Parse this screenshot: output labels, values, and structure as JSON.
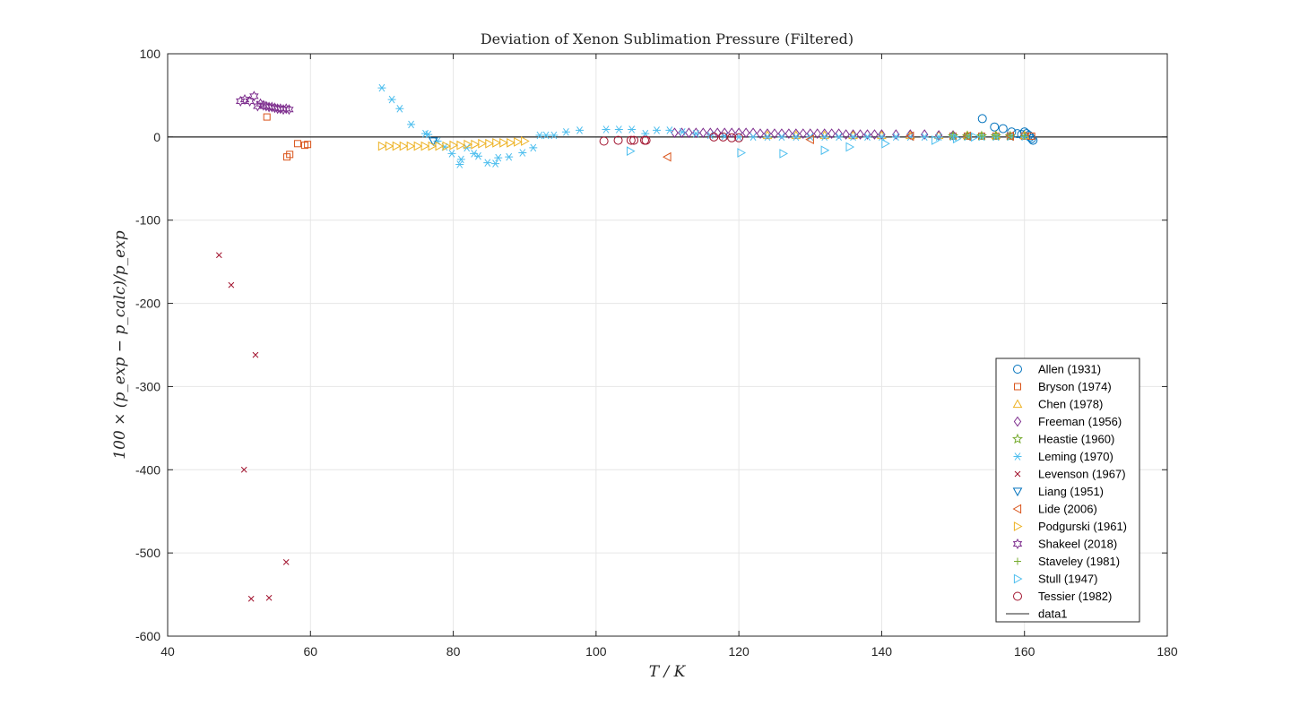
{
  "chart_data": {
    "type": "scatter",
    "title": "Deviation of Xenon Sublimation Pressure (Filtered)",
    "xlabel": "T / K",
    "ylabel": "100 × (p_exp − p_calc)/p_exp",
    "xlim": [
      40,
      180
    ],
    "ylim": [
      -600,
      100
    ],
    "xticks": [
      40,
      60,
      80,
      100,
      120,
      140,
      160,
      180
    ],
    "yticks": [
      -600,
      -500,
      -400,
      -300,
      -200,
      -100,
      0,
      100
    ],
    "xtick_labels": [
      "40",
      "60",
      "80",
      "100",
      "120",
      "140",
      "160",
      "180"
    ],
    "ytick_labels": [
      "-600",
      "-500",
      "-400",
      "-300",
      "-200",
      "-100",
      "0",
      "100"
    ],
    "grid": true,
    "legend_position": "bottom-right",
    "series": [
      {
        "name": "Allen (1931)",
        "marker": "circle",
        "color": "#0072BD",
        "x": [
          154.1,
          155.8,
          157.0,
          158.2,
          159.0,
          159.6,
          160.0,
          160.3,
          160.6,
          160.8,
          161.0,
          161.2
        ],
        "y": [
          22,
          12,
          10,
          6,
          4,
          3,
          6,
          4,
          2,
          0,
          -2,
          -4
        ]
      },
      {
        "name": "Bryson (1974)",
        "marker": "square",
        "color": "#D95319",
        "x": [
          53.9,
          56.7,
          57.1,
          58.2,
          59.2,
          59.6,
          150.0,
          152.0,
          154.0,
          156.0,
          158.0,
          160.0,
          161.0
        ],
        "y": [
          24,
          -24,
          -21,
          -8,
          -10,
          -9,
          1,
          1,
          1,
          1,
          1,
          1,
          1
        ]
      },
      {
        "name": "Chen (1978)",
        "marker": "triangle-up",
        "color": "#EDB120",
        "x": [
          124.0,
          128.0,
          132.0,
          136.0,
          140.0,
          144.0,
          148.0,
          152.0,
          156.0,
          160.0
        ],
        "y": [
          2,
          2,
          2,
          2,
          2,
          2,
          2,
          2,
          2,
          2
        ]
      },
      {
        "name": "Freeman (1956)",
        "marker": "diamond",
        "color": "#7E2F8E",
        "x": [
          111.0,
          112.0,
          113.0,
          114.0,
          115.0,
          116.0,
          117.0,
          118.0,
          119.0,
          120.0,
          121.0,
          122.0,
          123.0,
          124.0,
          125.0,
          126.0,
          127.0,
          128.0,
          129.0,
          130.0,
          131.0,
          132.0,
          133.0,
          134.0,
          135.0,
          136.0,
          137.0,
          138.0,
          139.0,
          140.0,
          142.0,
          144.0,
          146.0,
          148.0,
          150.0
        ],
        "y": [
          5,
          5,
          5,
          5,
          5,
          5,
          5,
          5,
          5,
          5,
          5,
          5,
          4,
          4,
          4,
          4,
          4,
          4,
          4,
          4,
          4,
          4,
          4,
          4,
          3,
          3,
          3,
          3,
          3,
          3,
          3,
          3,
          3,
          2,
          2
        ]
      },
      {
        "name": "Heastie (1960)",
        "marker": "pentagram",
        "color": "#77AC30",
        "x": [
          150.0,
          152.0,
          154.0,
          156.0,
          158.0
        ],
        "y": [
          1,
          1,
          1,
          1,
          1
        ]
      },
      {
        "name": "Leming (1970)",
        "marker": "asterisk",
        "color": "#4DBEEE",
        "x": [
          70.0,
          71.4,
          72.5,
          74.1,
          76.1,
          76.5,
          77.8,
          78.8,
          79.8,
          80.9,
          81.1,
          81.9,
          82.9,
          83.5,
          84.8,
          85.9,
          86.3,
          87.8,
          89.7,
          91.2,
          92.1,
          93.0,
          94.1,
          95.8,
          97.7,
          101.4,
          103.2,
          105.0,
          106.9,
          108.5,
          110.3,
          112.1,
          114.0,
          116.0,
          118.0,
          120.0,
          122.0,
          124.0,
          126.0,
          128.0,
          130.0,
          132.0,
          134.0,
          136.0,
          138.0,
          140.0,
          142.0,
          144.0,
          146.0,
          148.0,
          150.0,
          152.0,
          154.0,
          156.0,
          158.0,
          160.0
        ],
        "y": [
          59,
          45,
          34,
          15,
          4,
          3,
          -5,
          -12,
          -20,
          -33,
          -27,
          -13,
          -20,
          -23,
          -31,
          -32,
          -25,
          -24,
          -19,
          -13,
          2,
          2,
          2,
          6,
          8,
          9,
          9,
          9,
          4,
          8,
          8,
          6,
          4,
          2,
          1,
          0,
          0,
          0,
          0,
          0,
          0,
          0,
          0,
          0,
          0,
          0,
          0,
          0,
          0,
          0,
          0,
          0,
          0,
          0,
          0,
          0
        ]
      },
      {
        "name": "Levenson (1967)",
        "marker": "x",
        "color": "#A2142F",
        "x": [
          47.2,
          48.9,
          52.3,
          50.7,
          56.6,
          51.7,
          54.2
        ],
        "y": [
          -142,
          -178,
          -262,
          -400,
          -511,
          -555,
          -554
        ]
      },
      {
        "name": "Liang (1951)",
        "marker": "triangle-down",
        "color": "#0072BD",
        "x": [
          77.2
        ],
        "y": [
          -5
        ]
      },
      {
        "name": "Lide (2006)",
        "marker": "triangle-left",
        "color": "#D95319",
        "x": [
          110.0,
          130.0,
          144.0,
          152.0,
          158.0
        ],
        "y": [
          -24,
          -3,
          1,
          1,
          1
        ]
      },
      {
        "name": "Podgurski (1961)",
        "marker": "triangle-right",
        "color": "#EDB120",
        "x": [
          70.0,
          71.0,
          72.0,
          73.0,
          74.0,
          75.0,
          76.0,
          77.0,
          78.0,
          79.0,
          80.0,
          81.0,
          82.0,
          83.0,
          84.0,
          85.0,
          86.0,
          87.0,
          88.0,
          89.0,
          90.0
        ],
        "y": [
          -11,
          -11,
          -11,
          -11,
          -11,
          -11,
          -11,
          -11,
          -11,
          -11,
          -10,
          -10,
          -9,
          -9,
          -8,
          -8,
          -7,
          -7,
          -7,
          -6,
          -5
        ]
      },
      {
        "name": "Shakeel (2018)",
        "marker": "hexagram",
        "color": "#7E2F8E",
        "x": [
          50.2,
          50.8,
          51.5,
          52.1,
          52.6,
          53.0,
          53.4,
          53.8,
          54.2,
          54.6,
          55.0,
          55.4,
          55.8,
          56.2,
          56.6,
          57.0
        ],
        "y": [
          43,
          45,
          43,
          49,
          37,
          40,
          38,
          37,
          36,
          36,
          35,
          34,
          34,
          33,
          34,
          33
        ]
      },
      {
        "name": "Staveley (1981)",
        "marker": "plus",
        "color": "#77AC30",
        "x": [
          150.0,
          152.0,
          154.0,
          156.0,
          158.0,
          160.0
        ],
        "y": [
          1,
          1,
          1,
          1,
          1,
          1
        ]
      },
      {
        "name": "Stull (1947)",
        "marker": "triangle-right",
        "color": "#4DBEEE",
        "x": [
          104.8,
          120.3,
          126.2,
          132.0,
          135.5,
          140.5,
          147.5,
          150.5,
          153.0
        ],
        "y": [
          -17,
          -19,
          -20,
          -16,
          -12,
          -8,
          -4,
          -2,
          0
        ]
      },
      {
        "name": "Tessier (1982)",
        "marker": "circle",
        "color": "#A2142F",
        "x": [
          101.1,
          103.1,
          104.9,
          105.3,
          106.8,
          107.0,
          116.5,
          117.8,
          119.0,
          120.0
        ],
        "y": [
          -5,
          -4,
          -4,
          -4,
          -4,
          -4,
          0,
          0,
          -1,
          -1
        ]
      },
      {
        "name": "data1",
        "marker": "line",
        "color": "#262626",
        "x": [
          40,
          180
        ],
        "y": [
          0,
          0
        ]
      }
    ]
  }
}
